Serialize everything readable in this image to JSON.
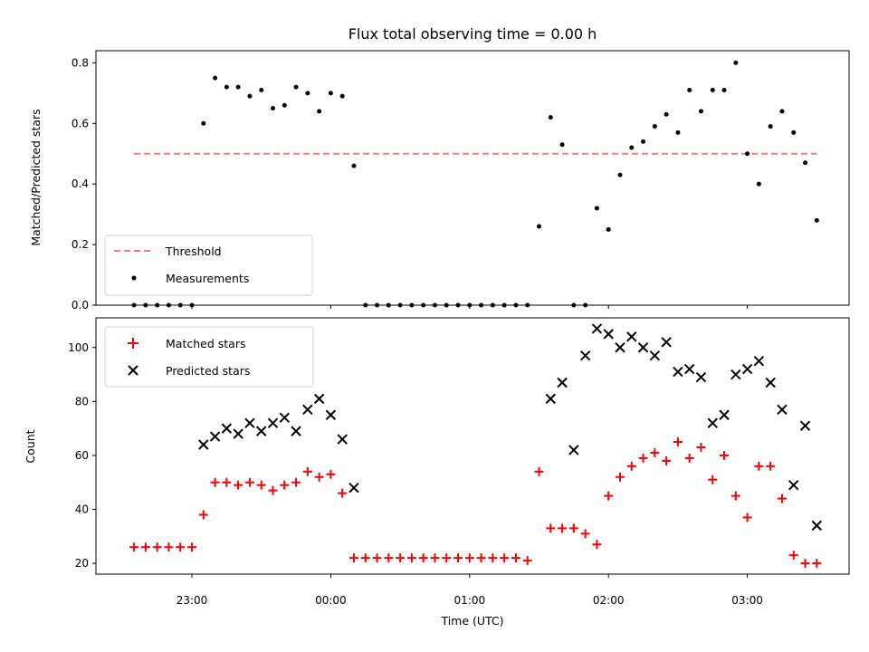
{
  "chart_data": [
    {
      "type": "scatter",
      "title": "Flux total observing time = 0.00 h",
      "xlabel": "",
      "ylabel": "Matched/Predicted stars",
      "ylim": [
        0,
        0.84
      ],
      "yticks": [
        0.0,
        0.2,
        0.4,
        0.6,
        0.8
      ],
      "ytick_labels": [
        "0.0",
        "0.2",
        "0.4",
        "0.6",
        "0.8"
      ],
      "legend_position": "lower-left",
      "threshold": {
        "name": "Threshold",
        "value": 0.5,
        "x_start": "22:35",
        "x_end": "03:30",
        "color": "#f08080"
      },
      "series": [
        {
          "name": "Measurements",
          "color": "#000000",
          "x": [
            "22:35",
            "22:40",
            "22:45",
            "22:50",
            "22:55",
            "23:00",
            "23:05",
            "23:10",
            "23:15",
            "23:20",
            "23:25",
            "23:30",
            "23:35",
            "23:40",
            "23:45",
            "23:50",
            "23:55",
            "00:00",
            "00:05",
            "00:10",
            "00:15",
            "00:20",
            "00:25",
            "00:30",
            "00:35",
            "00:40",
            "00:45",
            "00:50",
            "00:55",
            "01:00",
            "01:05",
            "01:10",
            "01:15",
            "01:20",
            "01:25",
            "01:30",
            "01:35",
            "01:40",
            "01:45",
            "01:50",
            "01:55",
            "02:00",
            "02:05",
            "02:10",
            "02:15",
            "02:20",
            "02:25",
            "02:30",
            "02:35",
            "02:40",
            "02:45",
            "02:50",
            "02:55",
            "03:00",
            "03:05",
            "03:10",
            "03:15",
            "03:20",
            "03:25",
            "03:30"
          ],
          "y": [
            0.0,
            0.0,
            0.0,
            0.0,
            0.0,
            0.0,
            0.6,
            0.75,
            0.72,
            0.72,
            0.69,
            0.71,
            0.65,
            0.66,
            0.72,
            0.7,
            0.64,
            0.7,
            0.69,
            0.46,
            0.0,
            0.0,
            0.0,
            0.0,
            0.0,
            0.0,
            0.0,
            0.0,
            0.0,
            0.0,
            0.0,
            0.0,
            0.0,
            0.0,
            0.0,
            0.26,
            0.62,
            0.53,
            0.0,
            0.0,
            0.32,
            0.25,
            0.43,
            0.52,
            0.54,
            0.59,
            0.63,
            0.57,
            0.71,
            0.64,
            0.71,
            0.71,
            0.8,
            0.5,
            0.4,
            0.59,
            0.64,
            0.57,
            0.47,
            0.28
          ]
        }
      ]
    },
    {
      "type": "scatter",
      "title": "",
      "xlabel": "Time (UTC)",
      "ylabel": "Count",
      "ylim": [
        16,
        111
      ],
      "yticks": [
        20,
        40,
        60,
        80,
        100
      ],
      "ytick_labels": [
        "20",
        "40",
        "60",
        "80",
        "100"
      ],
      "xticks": [
        "23:00",
        "00:00",
        "01:00",
        "02:00",
        "03:00"
      ],
      "legend_position": "upper-left",
      "series": [
        {
          "name": "Matched stars",
          "marker": "plus",
          "color": "#ff0000",
          "x": [
            "22:35",
            "22:40",
            "22:45",
            "22:50",
            "22:55",
            "23:00",
            "23:05",
            "23:10",
            "23:15",
            "23:20",
            "23:25",
            "23:30",
            "23:35",
            "23:40",
            "23:45",
            "23:50",
            "23:55",
            "00:00",
            "00:05",
            "00:10",
            "00:15",
            "00:20",
            "00:25",
            "00:30",
            "00:35",
            "00:40",
            "00:45",
            "00:50",
            "00:55",
            "01:00",
            "01:05",
            "01:10",
            "01:15",
            "01:20",
            "01:25",
            "01:30",
            "01:35",
            "01:40",
            "01:45",
            "01:50",
            "01:55",
            "02:00",
            "02:05",
            "02:10",
            "02:15",
            "02:20",
            "02:25",
            "02:30",
            "02:35",
            "02:40",
            "02:45",
            "02:50",
            "02:55",
            "03:00",
            "03:05",
            "03:10",
            "03:15",
            "03:20",
            "03:25",
            "03:30"
          ],
          "y": [
            26,
            26,
            26,
            26,
            26,
            26,
            38,
            50,
            50,
            49,
            50,
            49,
            47,
            49,
            50,
            54,
            52,
            53,
            46,
            22,
            22,
            22,
            22,
            22,
            22,
            22,
            22,
            22,
            22,
            22,
            22,
            22,
            22,
            22,
            21,
            54,
            33,
            33,
            33,
            31,
            27,
            45,
            52,
            56,
            59,
            61,
            58,
            65,
            59,
            63,
            51,
            60,
            45,
            37,
            56,
            56,
            44,
            23,
            20,
            20
          ]
        },
        {
          "name": "Predicted stars",
          "marker": "x",
          "color": "#000000",
          "x": [
            "23:05",
            "23:10",
            "23:15",
            "23:20",
            "23:25",
            "23:30",
            "23:35",
            "23:40",
            "23:45",
            "23:50",
            "23:55",
            "00:00",
            "00:05",
            "00:10",
            "01:35",
            "01:40",
            "01:45",
            "01:50",
            "01:55",
            "02:00",
            "02:05",
            "02:10",
            "02:15",
            "02:20",
            "02:25",
            "02:30",
            "02:35",
            "02:40",
            "02:45",
            "02:50",
            "02:55",
            "03:00",
            "03:05",
            "03:10",
            "03:15",
            "03:20",
            "03:25",
            "03:30"
          ],
          "y": [
            64,
            67,
            70,
            68,
            72,
            69,
            72,
            74,
            69,
            77,
            81,
            75,
            66,
            48,
            81,
            87,
            62,
            97,
            107,
            105,
            100,
            104,
            100,
            97,
            102,
            91,
            92,
            89,
            72,
            75,
            90,
            92,
            95,
            87,
            77,
            49,
            71,
            34
          ]
        }
      ]
    }
  ]
}
